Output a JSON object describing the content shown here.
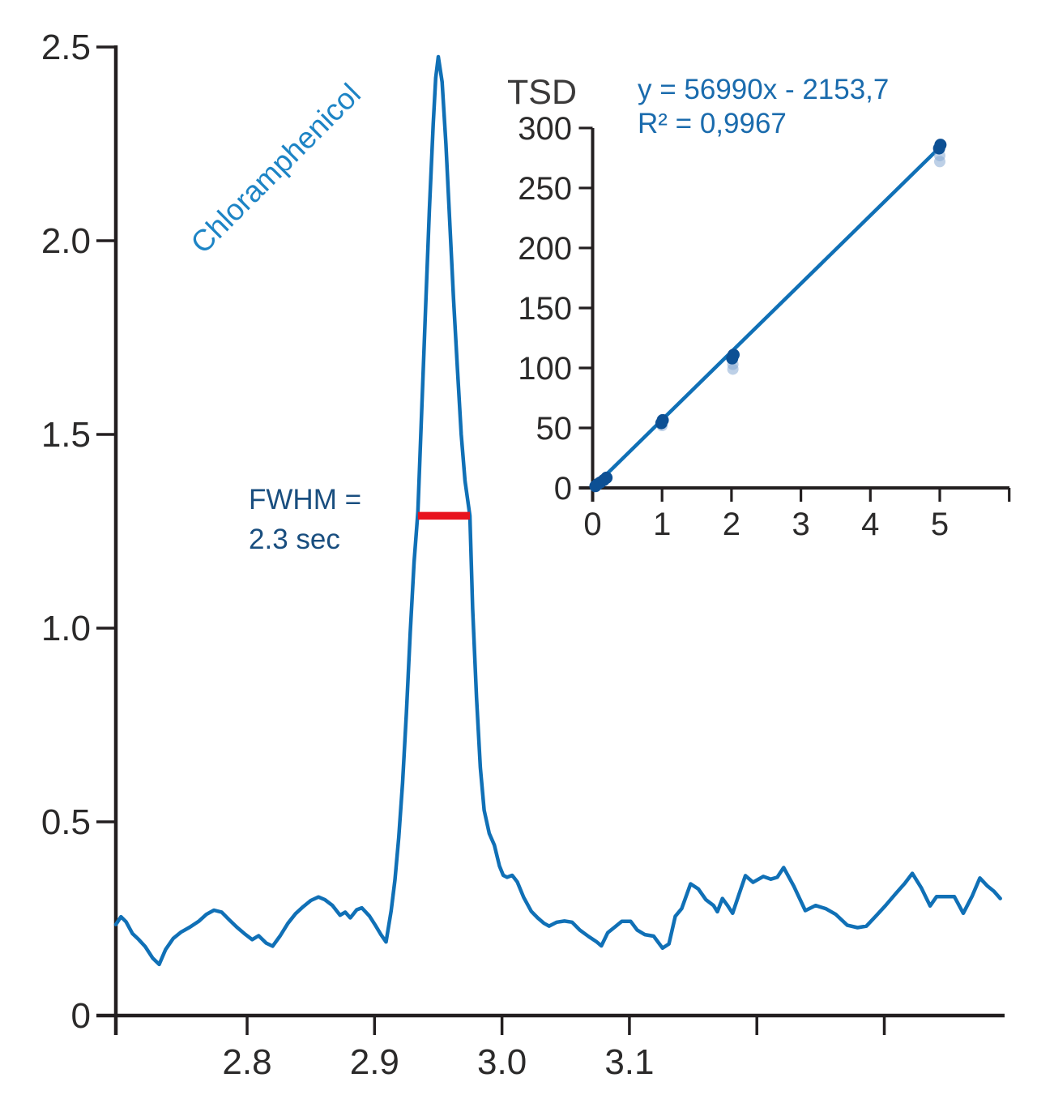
{
  "colors": {
    "axis": "#231f20",
    "tick_text": "#2b2a2a",
    "trace": "#1070b6",
    "fwhm_marker": "#e8131e",
    "peak_label_text": "#1d84c5",
    "fwhm_text": "#194e7f",
    "equation_text": "#1a6bad",
    "inset_title_text": "#3b3a3a",
    "point": "#0d5094",
    "point_faded": "#87a9d4"
  },
  "chart_data": [
    {
      "id": "chromatogram",
      "type": "line",
      "title": "",
      "xlabel": "",
      "ylabel": "",
      "xlim": [
        2.697,
        3.396
      ],
      "ylim": [
        0,
        2.5
      ],
      "grid": false,
      "x_ticks": [
        {
          "v": 2.8,
          "label": "2.8"
        },
        {
          "v": 2.9,
          "label": "2.9"
        },
        {
          "v": 3.0,
          "label": "3.0"
        },
        {
          "v": 3.1,
          "label": "3.1"
        },
        {
          "v": 3.2,
          "label": ""
        },
        {
          "v": 3.3,
          "label": ""
        }
      ],
      "y_ticks": [
        {
          "v": 0,
          "label": "0"
        },
        {
          "v": 0.5,
          "label": "0.5"
        },
        {
          "v": 1.0,
          "label": "1.0"
        },
        {
          "v": 1.5,
          "label": "1.5"
        },
        {
          "v": 2.0,
          "label": "2.0"
        },
        {
          "v": 2.5,
          "label": "2.5"
        }
      ],
      "annotations": {
        "peak_label": "Chloramphenicol",
        "fwhm_line1": "FWHM =",
        "fwhm_line2": "2.3 sec",
        "fwhm_segment": {
          "x1": 2.934,
          "x2": 2.9748,
          "y": 1.29
        }
      },
      "series": [
        {
          "name": "Chloramphenicol trace",
          "peak_apex": {
            "x": 2.95,
            "y": 2.475
          },
          "points": [
            [
              2.697,
              0.235
            ],
            [
              2.701,
              0.255
            ],
            [
              2.705,
              0.242
            ],
            [
              2.71,
              0.212
            ],
            [
              2.715,
              0.196
            ],
            [
              2.72,
              0.178
            ],
            [
              2.726,
              0.148
            ],
            [
              2.731,
              0.132
            ],
            [
              2.736,
              0.17
            ],
            [
              2.742,
              0.199
            ],
            [
              2.748,
              0.215
            ],
            [
              2.755,
              0.228
            ],
            [
              2.762,
              0.243
            ],
            [
              2.768,
              0.261
            ],
            [
              2.774,
              0.272
            ],
            [
              2.78,
              0.267
            ],
            [
              2.786,
              0.247
            ],
            [
              2.792,
              0.228
            ],
            [
              2.798,
              0.211
            ],
            [
              2.804,
              0.196
            ],
            [
              2.809,
              0.206
            ],
            [
              2.815,
              0.187
            ],
            [
              2.82,
              0.179
            ],
            [
              2.826,
              0.206
            ],
            [
              2.832,
              0.238
            ],
            [
              2.838,
              0.263
            ],
            [
              2.844,
              0.281
            ],
            [
              2.85,
              0.297
            ],
            [
              2.856,
              0.306
            ],
            [
              2.861,
              0.299
            ],
            [
              2.867,
              0.284
            ],
            [
              2.873,
              0.259
            ],
            [
              2.877,
              0.267
            ],
            [
              2.881,
              0.252
            ],
            [
              2.886,
              0.273
            ],
            [
              2.89,
              0.278
            ],
            [
              2.896,
              0.257
            ],
            [
              2.901,
              0.231
            ],
            [
              2.905,
              0.209
            ],
            [
              2.909,
              0.19
            ],
            [
              2.913,
              0.27
            ],
            [
              2.916,
              0.35
            ],
            [
              2.919,
              0.46
            ],
            [
              2.922,
              0.6
            ],
            [
              2.925,
              0.78
            ],
            [
              2.928,
              0.99
            ],
            [
              2.931,
              1.17
            ],
            [
              2.934,
              1.3
            ],
            [
              2.937,
              1.56
            ],
            [
              2.94,
              1.82
            ],
            [
              2.943,
              2.08
            ],
            [
              2.946,
              2.3
            ],
            [
              2.948,
              2.42
            ],
            [
              2.95,
              2.475
            ],
            [
              2.953,
              2.41
            ],
            [
              2.956,
              2.25
            ],
            [
              2.959,
              2.05
            ],
            [
              2.962,
              1.85
            ],
            [
              2.965,
              1.67
            ],
            [
              2.968,
              1.5
            ],
            [
              2.971,
              1.38
            ],
            [
              2.9748,
              1.29
            ],
            [
              2.977,
              1.05
            ],
            [
              2.98,
              0.82
            ],
            [
              2.983,
              0.64
            ],
            [
              2.986,
              0.53
            ],
            [
              2.99,
              0.47
            ],
            [
              2.994,
              0.44
            ],
            [
              2.998,
              0.386
            ],
            [
              3.001,
              0.362
            ],
            [
              3.004,
              0.357
            ],
            [
              3.008,
              0.362
            ],
            [
              3.012,
              0.345
            ],
            [
              3.017,
              0.305
            ],
            [
              3.023,
              0.269
            ],
            [
              3.028,
              0.252
            ],
            [
              3.033,
              0.238
            ],
            [
              3.037,
              0.231
            ],
            [
              3.043,
              0.241
            ],
            [
              3.049,
              0.244
            ],
            [
              3.055,
              0.241
            ],
            [
              3.061,
              0.221
            ],
            [
              3.068,
              0.204
            ],
            [
              3.074,
              0.191
            ],
            [
              3.078,
              0.18
            ],
            [
              3.083,
              0.214
            ],
            [
              3.088,
              0.227
            ],
            [
              3.094,
              0.243
            ],
            [
              3.101,
              0.243
            ],
            [
              3.106,
              0.221
            ],
            [
              3.112,
              0.209
            ],
            [
              3.119,
              0.205
            ],
            [
              3.126,
              0.174
            ],
            [
              3.131,
              0.185
            ],
            [
              3.136,
              0.256
            ],
            [
              3.141,
              0.276
            ],
            [
              3.148,
              0.34
            ],
            [
              3.154,
              0.327
            ],
            [
              3.16,
              0.299
            ],
            [
              3.166,
              0.284
            ],
            [
              3.169,
              0.268
            ],
            [
              3.173,
              0.302
            ],
            [
              3.177,
              0.284
            ],
            [
              3.181,
              0.264
            ],
            [
              3.186,
              0.313
            ],
            [
              3.191,
              0.361
            ],
            [
              3.197,
              0.344
            ],
            [
              3.205,
              0.359
            ],
            [
              3.211,
              0.352
            ],
            [
              3.216,
              0.357
            ],
            [
              3.221,
              0.382
            ],
            [
              3.229,
              0.334
            ],
            [
              3.238,
              0.271
            ],
            [
              3.246,
              0.284
            ],
            [
              3.254,
              0.276
            ],
            [
              3.262,
              0.261
            ],
            [
              3.271,
              0.233
            ],
            [
              3.279,
              0.227
            ],
            [
              3.286,
              0.231
            ],
            [
              3.294,
              0.259
            ],
            [
              3.301,
              0.284
            ],
            [
              3.309,
              0.315
            ],
            [
              3.316,
              0.341
            ],
            [
              3.322,
              0.367
            ],
            [
              3.329,
              0.33
            ],
            [
              3.336,
              0.283
            ],
            [
              3.341,
              0.307
            ],
            [
              3.355,
              0.307
            ],
            [
              3.362,
              0.264
            ],
            [
              3.369,
              0.309
            ],
            [
              3.375,
              0.355
            ],
            [
              3.381,
              0.334
            ],
            [
              3.386,
              0.321
            ],
            [
              3.391,
              0.302
            ]
          ]
        }
      ]
    },
    {
      "id": "calibration-inset",
      "type": "scatter",
      "title": "TSD",
      "equation": "y = 56990x - 2153,7",
      "r_squared": "R² = 0,9967",
      "xlim": [
        0,
        6
      ],
      "ylim": [
        0,
        300
      ],
      "grid": false,
      "x_ticks": [
        {
          "v": 0,
          "label": "0"
        },
        {
          "v": 1,
          "label": "1"
        },
        {
          "v": 2,
          "label": "2"
        },
        {
          "v": 3,
          "label": "3"
        },
        {
          "v": 4,
          "label": "4"
        },
        {
          "v": 5,
          "label": "5"
        },
        {
          "v": 6,
          "label": ""
        }
      ],
      "y_ticks": [
        {
          "v": 0,
          "label": "0"
        },
        {
          "v": 50,
          "label": "50"
        },
        {
          "v": 100,
          "label": "100"
        },
        {
          "v": 150,
          "label": "150"
        },
        {
          "v": 200,
          "label": "200"
        },
        {
          "v": 250,
          "label": "250"
        },
        {
          "v": 300,
          "label": "300"
        }
      ],
      "points": [
        [
          0.04,
          1.5
        ],
        [
          0.07,
          3
        ],
        [
          0.11,
          4.5
        ],
        [
          0.16,
          6.5
        ],
        [
          0.2,
          8.5
        ],
        [
          0.99,
          54
        ],
        [
          1.01,
          56.5
        ],
        [
          2.01,
          108
        ],
        [
          2.03,
          111
        ],
        [
          4.99,
          283
        ],
        [
          5.01,
          286
        ]
      ],
      "points_faded": [
        [
          1.0,
          52
        ],
        [
          2.02,
          103
        ],
        [
          2.02,
          99
        ],
        [
          5.0,
          277
        ],
        [
          5.0,
          272
        ]
      ],
      "fit_line": {
        "x1": 0,
        "y1": 0,
        "x2": 5.02,
        "y2": 285
      }
    }
  ]
}
